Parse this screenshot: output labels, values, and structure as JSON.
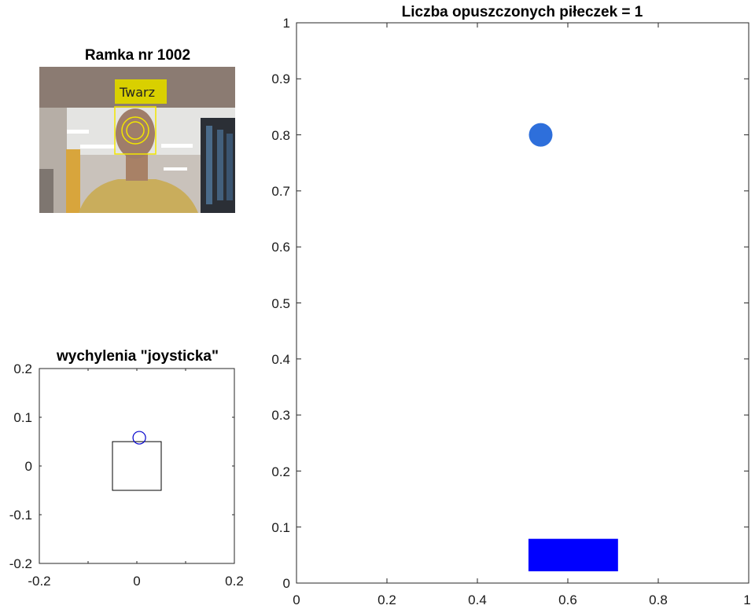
{
  "camera_panel": {
    "title": "Ramka nr 1002",
    "face_label": "Twarz"
  },
  "joystick_panel": {
    "title": "wychylenia \"joysticka\"",
    "xlim": [
      -0.2,
      0.2
    ],
    "ylim": [
      -0.2,
      0.2
    ],
    "x_ticks": [
      "-0.2",
      "0",
      "0.2"
    ],
    "y_ticks": [
      "0.2",
      "0.1",
      "0",
      "-0.1",
      "-0.2"
    ],
    "dead_zone": {
      "xmin": -0.05,
      "xmax": 0.05,
      "ymin": -0.05,
      "ymax": 0.05
    },
    "pointer": {
      "x": 0.005,
      "y": 0.058
    },
    "colors": {
      "pointer": "#0000cc",
      "frame": "#000000"
    }
  },
  "game_panel": {
    "title": "Liczba opuszczonych piłeczek = 1",
    "xlim": [
      0,
      1
    ],
    "ylim": [
      0,
      1
    ],
    "x_ticks": [
      "0",
      "0.2",
      "0.4",
      "0.6",
      "0.8",
      "1"
    ],
    "y_ticks": [
      "1",
      "0.9",
      "0.8",
      "0.7",
      "0.6",
      "0.5",
      "0.4",
      "0.3",
      "0.2",
      "0.1",
      "0"
    ],
    "ball": {
      "x": 0.54,
      "y": 0.8
    },
    "paddle": {
      "xmin": 0.513,
      "xmax": 0.711,
      "ymin": 0.021,
      "ymax": 0.079
    },
    "colors": {
      "ball": "#2e6fdb",
      "paddle": "#0000ff"
    }
  }
}
